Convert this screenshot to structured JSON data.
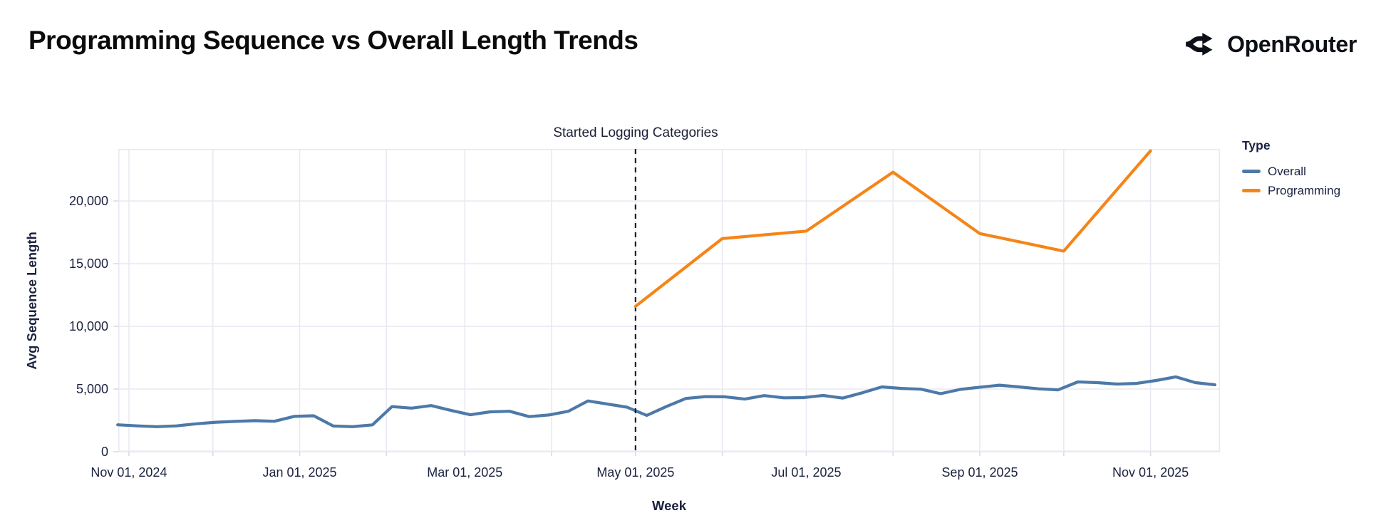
{
  "header": {
    "title": "Programming Sequence vs Overall Length Trends",
    "brand": "OpenRouter"
  },
  "chart_data": {
    "type": "line",
    "title": "Programming Sequence vs Overall Length Trends",
    "xlabel": "Week",
    "ylabel": "Avg Sequence Length",
    "x_domain_days": [
      -3.8,
      389.8
    ],
    "x_domain_note": "days since Nov 01, 2024",
    "y_domain": [
      0,
      24150
    ],
    "grid": true,
    "annotation": {
      "label": "Started Logging Categories",
      "day": 181,
      "date": "May 01, 2025",
      "style": "dashed-vertical-rule"
    },
    "x_ticks": [
      {
        "day": 0,
        "label": "Nov 01, 2024"
      },
      {
        "day": 61,
        "label": "Jan 01, 2025"
      },
      {
        "day": 120,
        "label": "Mar 01, 2025"
      },
      {
        "day": 181,
        "label": "May 01, 2025"
      },
      {
        "day": 242,
        "label": "Jul 01, 2025"
      },
      {
        "day": 304,
        "label": "Sep 01, 2025"
      },
      {
        "day": 365,
        "label": "Nov 01, 2025"
      }
    ],
    "month_gridline_days": [
      0,
      30,
      61,
      92,
      120,
      151,
      181,
      212,
      242,
      273,
      304,
      334,
      365
    ],
    "y_ticks": [
      {
        "value": 0,
        "label": "0"
      },
      {
        "value": 5000,
        "label": "5,000"
      },
      {
        "value": 10000,
        "label": "10,000"
      },
      {
        "value": 15000,
        "label": "15,000"
      },
      {
        "value": 20000,
        "label": "20,000"
      }
    ],
    "legend": {
      "title": "Type",
      "position": "right"
    },
    "colors": {
      "grid": "#e9e9f2",
      "tick": "#d9dbe8",
      "rule": "#181c30",
      "axis_text": "#1b2240"
    },
    "series": [
      {
        "name": "Overall",
        "color": "#4d79a7",
        "cadence": "weekly",
        "points": [
          [
            -4,
            2150
          ],
          [
            3,
            2060
          ],
          [
            10,
            2000
          ],
          [
            17,
            2060
          ],
          [
            24,
            2230
          ],
          [
            31,
            2350
          ],
          [
            38,
            2420
          ],
          [
            45,
            2480
          ],
          [
            52,
            2430
          ],
          [
            59,
            2820
          ],
          [
            66,
            2870
          ],
          [
            73,
            2050
          ],
          [
            80,
            2000
          ],
          [
            87,
            2140
          ],
          [
            94,
            3600
          ],
          [
            101,
            3480
          ],
          [
            108,
            3680
          ],
          [
            115,
            3300
          ],
          [
            122,
            2950
          ],
          [
            129,
            3180
          ],
          [
            136,
            3230
          ],
          [
            143,
            2800
          ],
          [
            150,
            2930
          ],
          [
            157,
            3230
          ],
          [
            164,
            4050
          ],
          [
            171,
            3800
          ],
          [
            178,
            3550
          ],
          [
            185,
            2900
          ],
          [
            192,
            3600
          ],
          [
            199,
            4250
          ],
          [
            206,
            4400
          ],
          [
            213,
            4380
          ],
          [
            220,
            4200
          ],
          [
            227,
            4480
          ],
          [
            234,
            4300
          ],
          [
            241,
            4320
          ],
          [
            248,
            4490
          ],
          [
            255,
            4280
          ],
          [
            262,
            4700
          ],
          [
            269,
            5170
          ],
          [
            276,
            5050
          ],
          [
            283,
            4990
          ],
          [
            290,
            4630
          ],
          [
            297,
            4970
          ],
          [
            304,
            5150
          ],
          [
            311,
            5310
          ],
          [
            318,
            5170
          ],
          [
            325,
            5020
          ],
          [
            332,
            4940
          ],
          [
            339,
            5570
          ],
          [
            346,
            5510
          ],
          [
            353,
            5400
          ],
          [
            360,
            5450
          ],
          [
            367,
            5680
          ],
          [
            374,
            5970
          ],
          [
            381,
            5510
          ],
          [
            388,
            5340
          ]
        ]
      },
      {
        "name": "Programming",
        "color": "#f58518",
        "cadence": "monthly",
        "points": [
          [
            181,
            11600
          ],
          [
            212,
            17000
          ],
          [
            242,
            17600
          ],
          [
            273,
            22300
          ],
          [
            304,
            17400
          ],
          [
            334,
            16000
          ],
          [
            365,
            24000
          ]
        ]
      }
    ]
  }
}
